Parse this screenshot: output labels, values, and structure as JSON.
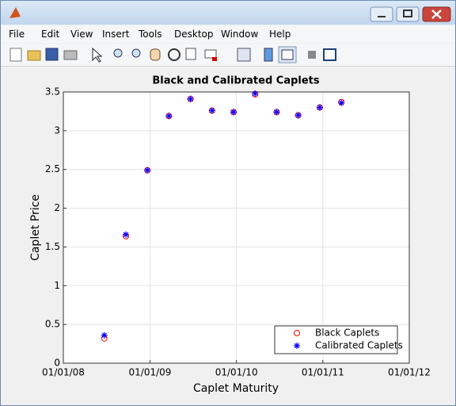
{
  "window": {
    "menu": [
      "File",
      "Edit",
      "View",
      "Insert",
      "Tools",
      "Desktop",
      "Window",
      "Help"
    ]
  },
  "chart_data": {
    "type": "scatter",
    "title": "Black and Calibrated Caplets",
    "x_label": "Caplet Maturity",
    "y_label": "Caplet Price",
    "x": [
      "06/22/08",
      "09/21/08",
      "12/21/08",
      "03/22/09",
      "06/21/09",
      "09/20/09",
      "12/20/09",
      "03/21/10",
      "06/20/10",
      "09/19/10",
      "12/19/10",
      "03/20/11"
    ],
    "series": [
      {
        "name": "Black Caplets",
        "color": "#ff0000",
        "marker": "o",
        "values": [
          0.32,
          1.64,
          2.49,
          3.19,
          3.41,
          3.26,
          3.24,
          3.47,
          3.24,
          3.2,
          3.3,
          3.37
        ]
      },
      {
        "name": "Calibrated Caplets",
        "color": "#0000ff",
        "marker": "*",
        "values": [
          0.36,
          1.66,
          2.49,
          3.19,
          3.41,
          3.26,
          3.24,
          3.48,
          3.24,
          3.2,
          3.3,
          3.36
        ]
      }
    ],
    "xlim": [
      "01/01/08",
      "01/01/12"
    ],
    "xticks": [
      "01/01/08",
      "01/01/09",
      "01/01/10",
      "01/01/11",
      "01/01/12"
    ],
    "ylim": [
      0,
      3.5
    ],
    "yticks": [
      0,
      0.5,
      1,
      1.5,
      2,
      2.5,
      3,
      3.5
    ],
    "grid": true,
    "legend": "lower-right"
  }
}
